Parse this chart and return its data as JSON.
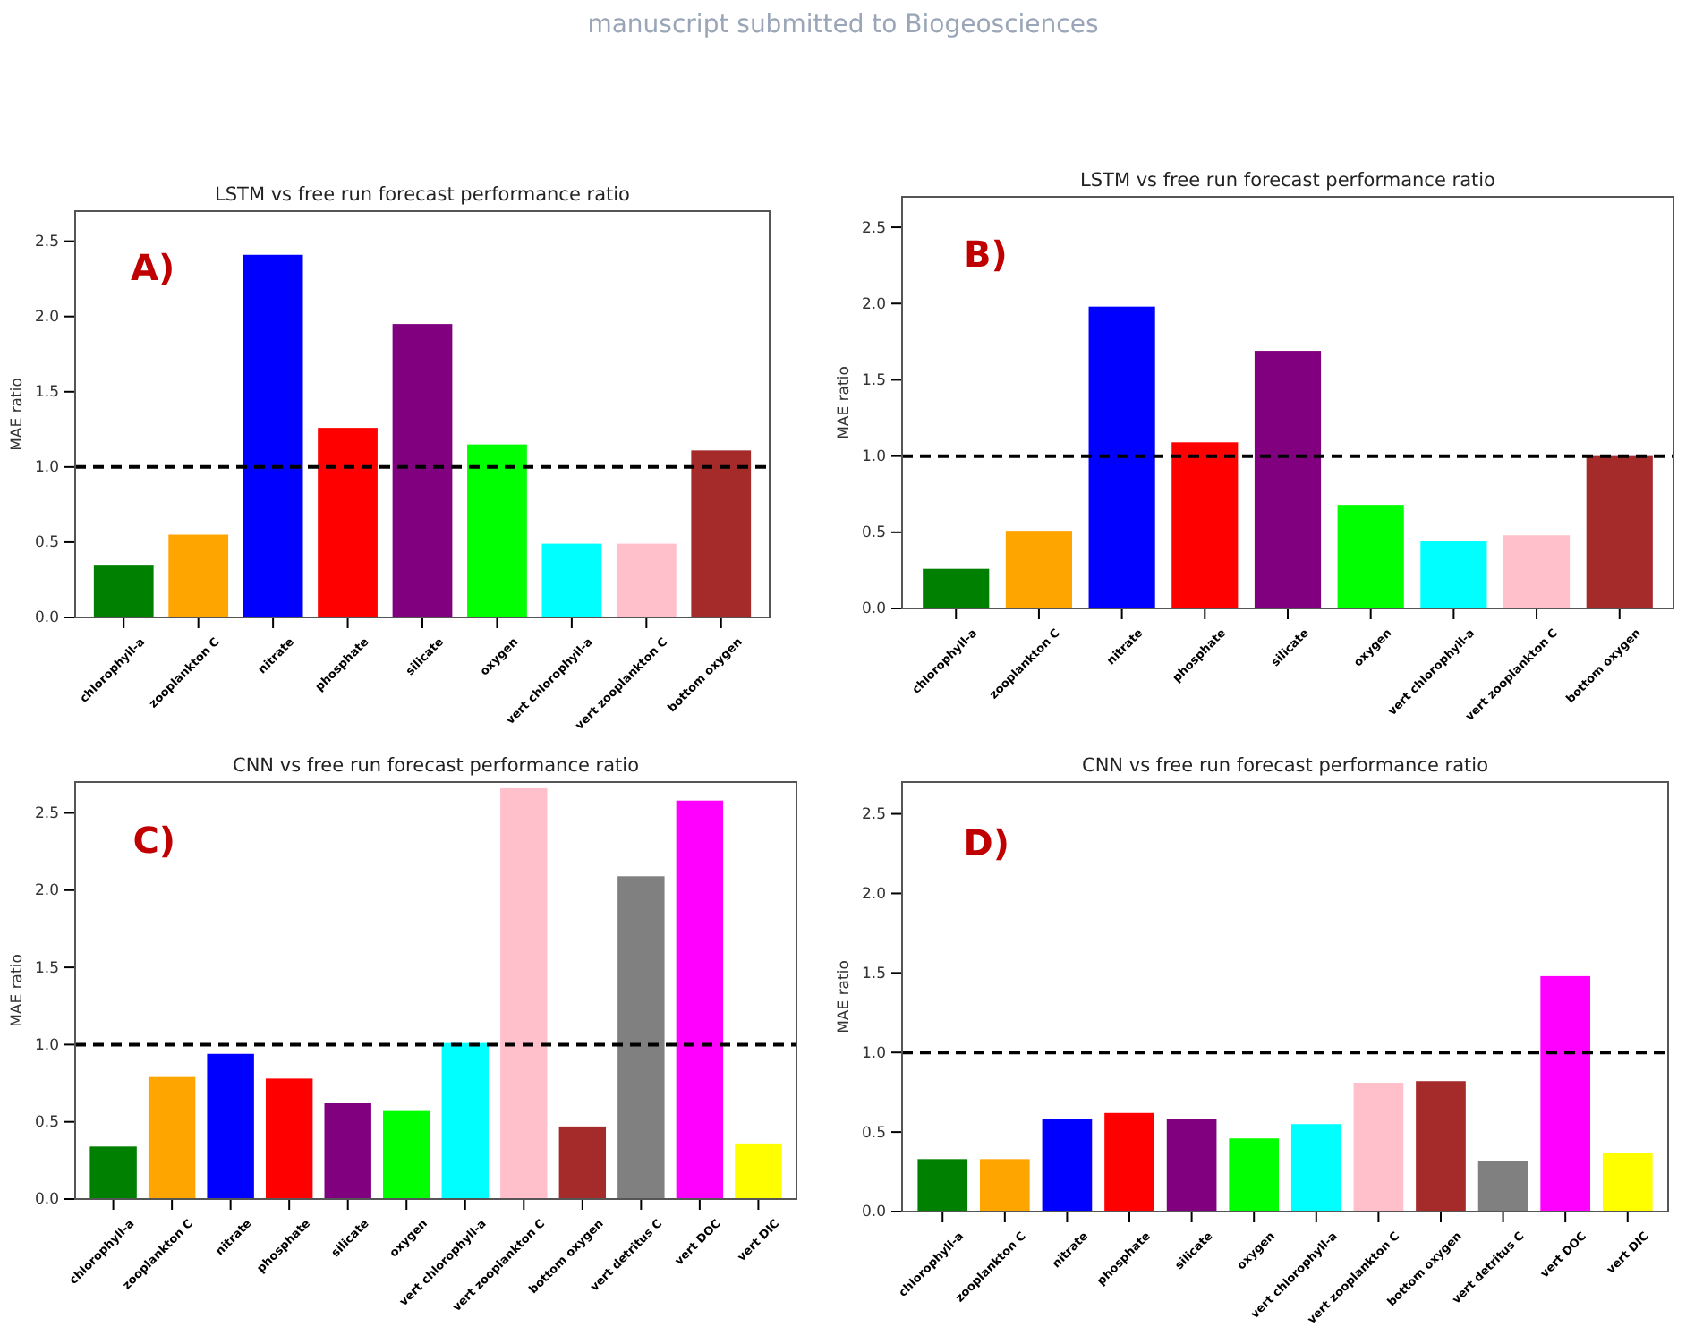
{
  "chart_data": [
    {
      "type": "bar",
      "title": "LSTM vs free run forecast performance ratio",
      "ylabel": "MAE ratio",
      "categories": [
        "chlorophyll-a",
        "zooplankton C",
        "nitrate",
        "phosphate",
        "silicate",
        "oxygen",
        "vert chlorophyll-a",
        "vert zooplankton C",
        "bottom oxygen"
      ],
      "values": [
        0.35,
        0.55,
        2.41,
        1.26,
        1.95,
        1.15,
        0.49,
        0.49,
        1.11
      ],
      "colors": [
        "#008000",
        "#ffa500",
        "#0000ff",
        "#ff0000",
        "#800080",
        "#00ff00",
        "#00ffff",
        "#ffc0cb",
        "#a52a2a"
      ],
      "ylim": [
        0,
        2.7
      ],
      "yticks": [
        {
          "value": 0,
          "label": "0.0"
        },
        0.5,
        {
          "value": 1,
          "label": "1.0"
        },
        1.5,
        {
          "value": 2,
          "label": "2.0"
        },
        2.5
      ],
      "ref_lines": [
        {
          "axis": "y",
          "value": 1,
          "color": "#000000",
          "line_style": "dashed"
        }
      ],
      "annotations": [
        "A)",
        "manuscript submitted to Biogeosciences"
      ]
    },
    {
      "type": "bar",
      "title": "LSTM vs free run forecast performance ratio",
      "ylabel": "MAE ratio",
      "categories": [
        "chlorophyll-a",
        "zooplankton C",
        "nitrate",
        "phosphate",
        "silicate",
        "oxygen",
        "vert chlorophyll-a",
        "vert zooplankton C",
        "bottom oxygen"
      ],
      "values": [
        0.26,
        0.51,
        1.98,
        1.09,
        1.69,
        0.68,
        0.44,
        0.48,
        1.0
      ],
      "colors": [
        "#008000",
        "#ffa500",
        "#0000ff",
        "#ff0000",
        "#800080",
        "#00ff00",
        "#00ffff",
        "#ffc0cb",
        "#a52a2a"
      ],
      "ylim": [
        0,
        2.7
      ],
      "yticks": [
        {
          "value": 0,
          "label": "0.0"
        },
        0.5,
        {
          "value": 1,
          "label": "1.0"
        },
        1.5,
        {
          "value": 2,
          "label": "2.0"
        },
        2.5
      ],
      "ref_lines": [
        {
          "axis": "y",
          "value": 1,
          "color": "#000000",
          "line_style": "dashed"
        }
      ],
      "annotations": [
        "B)"
      ]
    },
    {
      "type": "bar",
      "title": "CNN vs free run forecast performance ratio",
      "ylabel": "MAE ratio",
      "categories": [
        "chlorophyll-a",
        "zooplankton C",
        "nitrate",
        "phosphate",
        "silicate",
        "oxygen",
        "vert chlorophyll-a",
        "vert zooplankton C",
        "bottom oxygen",
        "vert detritus C",
        "vert DOC",
        "vert DIC"
      ],
      "values": [
        0.34,
        0.79,
        0.94,
        0.78,
        0.62,
        0.57,
        1.01,
        2.66,
        0.47,
        2.09,
        2.58,
        0.36
      ],
      "colors": [
        "#008000",
        "#ffa500",
        "#0000ff",
        "#ff0000",
        "#800080",
        "#00ff00",
        "#00ffff",
        "#ffc0cb",
        "#a52a2a",
        "#808080",
        "#ff00ff",
        "#ffff00"
      ],
      "ylim": [
        0,
        2.7
      ],
      "yticks": [
        {
          "value": 0,
          "label": "0.0"
        },
        0.5,
        {
          "value": 1,
          "label": "1.0"
        },
        1.5,
        {
          "value": 2,
          "label": "2.0"
        },
        2.5
      ],
      "ref_lines": [
        {
          "axis": "y",
          "value": 1,
          "color": "#000000",
          "line_style": "dashed"
        }
      ],
      "annotations": [
        "C)"
      ]
    },
    {
      "type": "bar",
      "title": "CNN vs free run forecast performance ratio",
      "ylabel": "MAE ratio",
      "categories": [
        "chlorophyll-a",
        "zooplankton C",
        "nitrate",
        "phosphate",
        "silicate",
        "oxygen",
        "vert chlorophyll-a",
        "vert zooplankton C",
        "bottom oxygen",
        "vert detritus C",
        "vert DOC",
        "vert DIC"
      ],
      "values": [
        0.33,
        0.33,
        0.58,
        0.62,
        0.58,
        0.46,
        0.55,
        0.81,
        0.82,
        0.32,
        1.48,
        0.37
      ],
      "colors": [
        "#008000",
        "#ffa500",
        "#0000ff",
        "#ff0000",
        "#800080",
        "#00ff00",
        "#00ffff",
        "#ffc0cb",
        "#a52a2a",
        "#808080",
        "#ff00ff",
        "#ffff00"
      ],
      "ylim": [
        0,
        2.7
      ],
      "yticks": [
        {
          "value": 0,
          "label": "0.0"
        },
        0.5,
        {
          "value": 1,
          "label": "1.0"
        },
        1.5,
        {
          "value": 2,
          "label": "2.0"
        },
        2.5
      ],
      "ref_lines": [
        {
          "axis": "y",
          "value": 1,
          "color": "#000000",
          "line_style": "dashed"
        }
      ],
      "annotations": [
        "D)"
      ]
    }
  ]
}
